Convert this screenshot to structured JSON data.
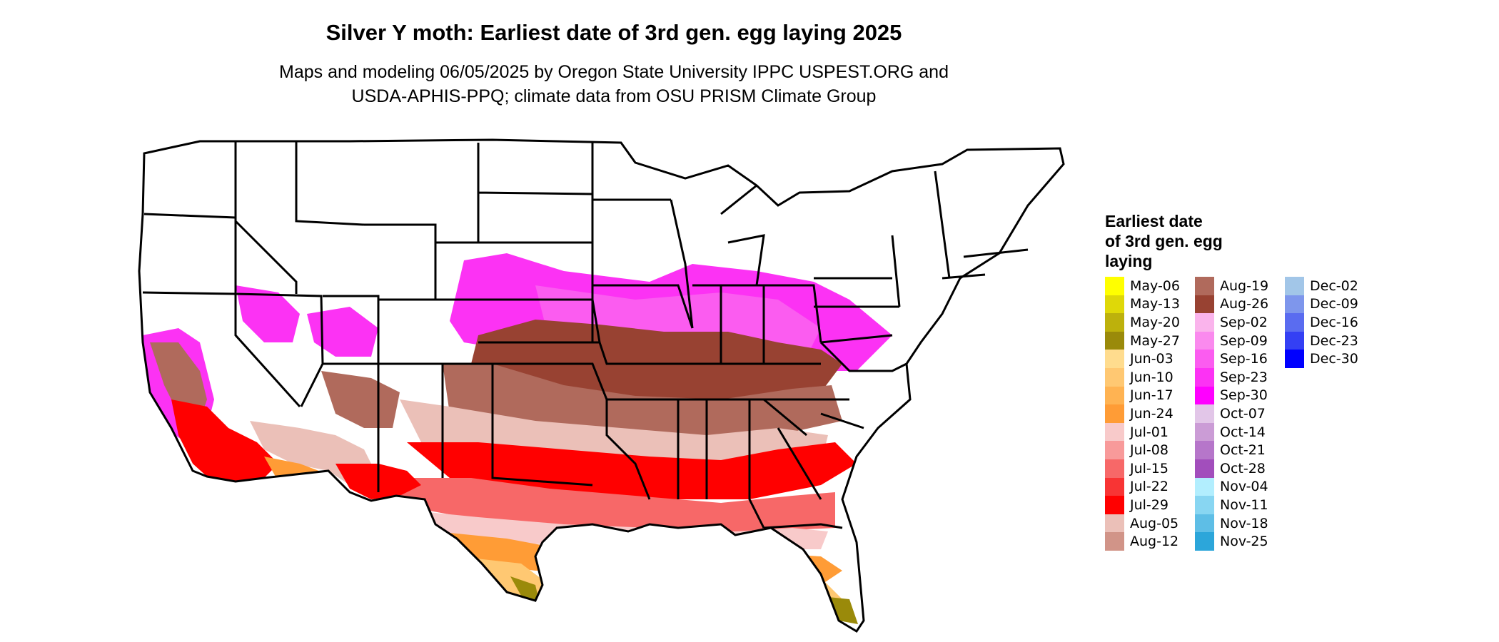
{
  "title": "Silver Y moth: Earliest date of 3rd gen. egg laying 2025",
  "subtitle": {
    "line1": "Maps and modeling 06/05/2025 by Oregon State University IPPC USPEST.ORG and",
    "line2": "USDA-APHIS-PPQ; climate data from OSU PRISM Climate Group"
  },
  "legend": {
    "title_lines": [
      "Earliest date",
      "of 3rd gen. egg",
      "laying"
    ],
    "columns": [
      [
        {
          "label": "May-06",
          "color": "#FFFF00"
        },
        {
          "label": "May-13",
          "color": "#DFD808"
        },
        {
          "label": "May-20",
          "color": "#BDB10C"
        },
        {
          "label": "May-27",
          "color": "#9A8A0A"
        },
        {
          "label": "Jun-03",
          "color": "#FFDC8E"
        },
        {
          "label": "Jun-10",
          "color": "#FFC872"
        },
        {
          "label": "Jun-17",
          "color": "#FFB352"
        },
        {
          "label": "Jun-24",
          "color": "#FF9C36"
        },
        {
          "label": "Jul-01",
          "color": "#F8CACA"
        },
        {
          "label": "Jul-08",
          "color": "#F89A9A"
        },
        {
          "label": "Jul-15",
          "color": "#F76868"
        },
        {
          "label": "Jul-22",
          "color": "#F83434"
        },
        {
          "label": "Jul-29",
          "color": "#FF0000"
        },
        {
          "label": "Aug-05",
          "color": "#EBC0B8"
        },
        {
          "label": "Aug-12",
          "color": "#D19488"
        }
      ],
      [
        {
          "label": "Aug-19",
          "color": "#B06A5C"
        },
        {
          "label": "Aug-26",
          "color": "#984232"
        },
        {
          "label": "Sep-02",
          "color": "#FAB4EC"
        },
        {
          "label": "Sep-09",
          "color": "#FA8AEE"
        },
        {
          "label": "Sep-16",
          "color": "#FB5CF0"
        },
        {
          "label": "Sep-23",
          "color": "#FC32F4"
        },
        {
          "label": "Sep-30",
          "color": "#FF00FF"
        },
        {
          "label": "Oct-07",
          "color": "#E2C6E8"
        },
        {
          "label": "Oct-14",
          "color": "#CB9CD6"
        },
        {
          "label": "Oct-21",
          "color": "#B676CA"
        },
        {
          "label": "Oct-28",
          "color": "#A24EBC"
        },
        {
          "label": "Nov-04",
          "color": "#B2EEFE"
        },
        {
          "label": "Nov-11",
          "color": "#88D6F2"
        },
        {
          "label": "Nov-18",
          "color": "#5EBEE6"
        },
        {
          "label": "Nov-25",
          "color": "#2CA6DA"
        }
      ],
      [
        {
          "label": "Dec-02",
          "color": "#A2C6E8"
        },
        {
          "label": "Dec-09",
          "color": "#7E96EC"
        },
        {
          "label": "Dec-16",
          "color": "#5A6CF0"
        },
        {
          "label": "Dec-23",
          "color": "#3440F4"
        },
        {
          "label": "Dec-30",
          "color": "#0000FF"
        }
      ]
    ]
  },
  "map_colors": {
    "background": "#FFFFFF",
    "border": "#000000"
  }
}
